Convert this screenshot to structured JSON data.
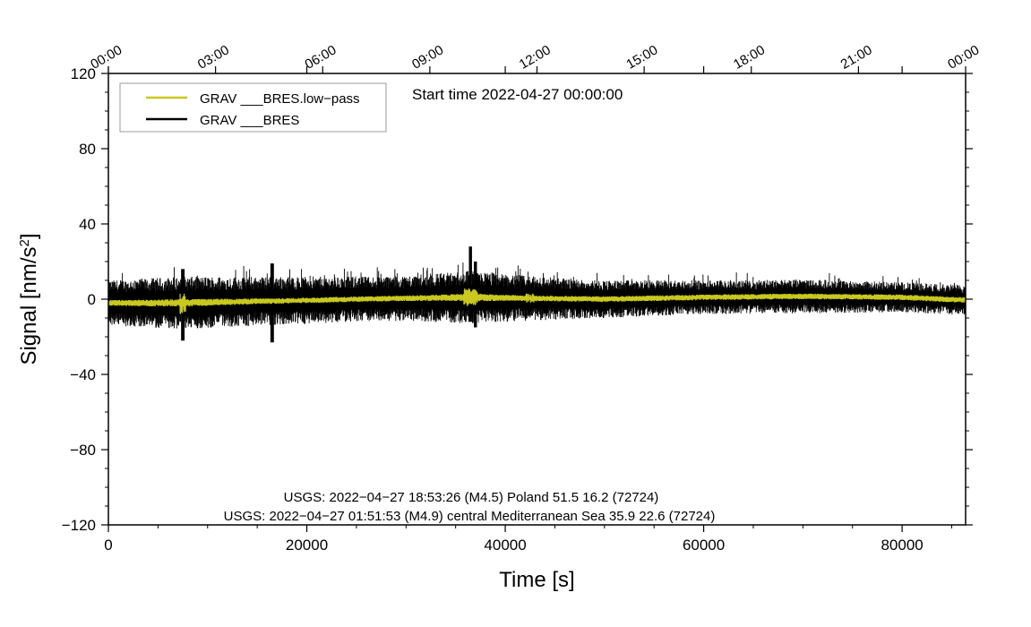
{
  "chart_data": {
    "type": "line",
    "title": "",
    "start_time_label": "Start time 2022-04-27 00:00:00",
    "xlabel": "Time [s]",
    "ylabel_main": "Signal [nm/s",
    "ylabel_sup": "2",
    "ylabel_end": "]",
    "xlim": [
      0,
      86400
    ],
    "ylim": [
      -120,
      120
    ],
    "x_ticks": [
      0,
      20000,
      40000,
      60000,
      80000
    ],
    "x_tick_labels": [
      "0",
      "20000",
      "40000",
      "60000",
      "80000"
    ],
    "y_ticks": [
      -120,
      -80,
      -40,
      0,
      40,
      80,
      120
    ],
    "y_tick_labels": [
      "−120",
      "−80",
      "−40",
      "0",
      "40",
      "80",
      "120"
    ],
    "top_axis_ticks": [
      0,
      10800,
      21600,
      32400,
      43200,
      54000,
      64800,
      75600,
      86400
    ],
    "top_axis_labels": [
      "00:00",
      "03:00",
      "06:00",
      "09:00",
      "12:00",
      "15:00",
      "18:00",
      "21:00",
      "00:00"
    ],
    "grid": false,
    "legend_position": "top-left",
    "series": [
      {
        "name": "GRAV ___BRES.low−pass",
        "color": "#c8c81e",
        "envelope": {
          "x": [
            0,
            7500,
            16000,
            17000,
            25000,
            30000,
            36500,
            42000,
            50000,
            60000,
            70000,
            80000,
            86400
          ],
          "center": [
            -2,
            -2,
            -1,
            -1,
            0,
            0.5,
            1,
            0.5,
            0,
            1,
            1.5,
            1,
            -0.5
          ],
          "halfwidth": [
            1.5,
            2,
            1.5,
            1.5,
            1.5,
            1.5,
            2,
            1.5,
            1.5,
            1.5,
            1.5,
            1.5,
            1.5
          ]
        }
      },
      {
        "name": "GRAV ___BRES",
        "color": "#000000",
        "envelope": {
          "x": [
            0,
            7500,
            16000,
            25000,
            30000,
            36500,
            42000,
            50000,
            60000,
            70000,
            80000,
            86400
          ],
          "center": [
            -2,
            -2,
            -1,
            0,
            0.5,
            1,
            0.5,
            0,
            1,
            1.5,
            1,
            -0.5
          ],
          "halfwidth": [
            12,
            14,
            13,
            12,
            12,
            14,
            12,
            10,
            9,
            9,
            8,
            8
          ]
        },
        "spikes": [
          {
            "x": 7500,
            "min": -22,
            "max": 16
          },
          {
            "x": 16500,
            "min": -23,
            "max": 19
          },
          {
            "x": 36500,
            "min": -12,
            "max": 28
          },
          {
            "x": 37000,
            "min": -15,
            "max": 20
          }
        ]
      }
    ],
    "events": [
      "USGS: 2022−04−27 18:53:26 (M4.5) Poland 51.5 16.2 (72724)",
      "USGS: 2022−04−27 01:51:53 (M4.9) central Mediterranean Sea 35.9 22.6 (72724)"
    ]
  }
}
